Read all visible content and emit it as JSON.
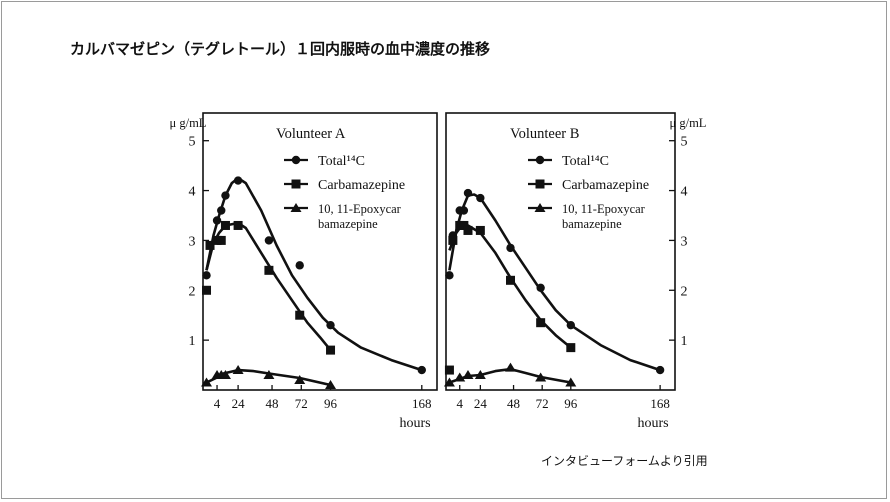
{
  "slide": {
    "title": "カルバマゼピン（テグレトール）１回内服時の血中濃度の推移",
    "source_note": "インタビューフォームより引用"
  },
  "colors": {
    "ink": "#111111",
    "border": "#9a9a9a",
    "background": "#ffffff"
  },
  "chart_data": [
    {
      "type": "line",
      "panel": "left",
      "title": "Volunteer A",
      "ylabel": "μ g/mL",
      "xlabel": "hours",
      "y_axis_side": "left",
      "ylim": [
        0,
        5
      ],
      "yticks": [
        "1",
        "2",
        "3",
        "4",
        "5"
      ],
      "xticks": [
        "4",
        "24",
        "48",
        "72",
        "96",
        "168"
      ],
      "legend_position": "top-right",
      "legend": [
        {
          "marker": "circle",
          "label": "Total¹⁴C"
        },
        {
          "marker": "square",
          "label": "Carbamazepine"
        },
        {
          "marker": "triangle",
          "label": "10, 11-Epoxycar",
          "label2": "bamazepine"
        }
      ],
      "series": [
        {
          "name": "Total¹⁴C",
          "marker": "circle",
          "points": [
            [
              1,
              2.3
            ],
            [
              2,
              2.9
            ],
            [
              4,
              3.4
            ],
            [
              8,
              3.6
            ],
            [
              12,
              3.9
            ],
            [
              24,
              4.2
            ],
            [
              48,
              3.0
            ],
            [
              72,
              2.5
            ],
            [
              96,
              1.3
            ],
            [
              168,
              0.4
            ]
          ],
          "curve": [
            [
              1,
              2.4
            ],
            [
              3,
              3.1
            ],
            [
              6,
              3.5
            ],
            [
              12,
              3.9
            ],
            [
              18,
              4.15
            ],
            [
              24,
              4.25
            ],
            [
              30,
              4.15
            ],
            [
              42,
              3.6
            ],
            [
              54,
              2.9
            ],
            [
              66,
              2.3
            ],
            [
              78,
              1.85
            ],
            [
              90,
              1.45
            ],
            [
              102,
              1.15
            ],
            [
              120,
              0.85
            ],
            [
              144,
              0.6
            ],
            [
              168,
              0.4
            ]
          ]
        },
        {
          "name": "Carbamazepine",
          "marker": "square",
          "points": [
            [
              1,
              2.0
            ],
            [
              2,
              2.9
            ],
            [
              4,
              3.0
            ],
            [
              8,
              3.0
            ],
            [
              12,
              3.3
            ],
            [
              24,
              3.3
            ],
            [
              48,
              2.4
            ],
            [
              72,
              1.5
            ],
            [
              96,
              0.8
            ]
          ],
          "curve": [
            [
              1,
              2.4
            ],
            [
              3,
              2.95
            ],
            [
              6,
              3.15
            ],
            [
              12,
              3.3
            ],
            [
              24,
              3.35
            ],
            [
              30,
              3.25
            ],
            [
              42,
              2.75
            ],
            [
              54,
              2.25
            ],
            [
              66,
              1.8
            ],
            [
              78,
              1.35
            ],
            [
              88,
              1.05
            ],
            [
              96,
              0.8
            ]
          ]
        },
        {
          "name": "10, 11-Epoxycarbamazepine",
          "marker": "triangle",
          "points": [
            [
              1,
              0.15
            ],
            [
              4,
              0.3
            ],
            [
              8,
              0.3
            ],
            [
              12,
              0.3
            ],
            [
              24,
              0.4
            ],
            [
              48,
              0.3
            ],
            [
              72,
              0.2
            ],
            [
              96,
              0.1
            ]
          ],
          "curve": [
            [
              1,
              0.15
            ],
            [
              4,
              0.25
            ],
            [
              10,
              0.33
            ],
            [
              24,
              0.4
            ],
            [
              36,
              0.38
            ],
            [
              48,
              0.33
            ],
            [
              72,
              0.24
            ],
            [
              96,
              0.1
            ]
          ]
        }
      ]
    },
    {
      "type": "line",
      "panel": "right",
      "title": "Volunteer B",
      "ylabel": "μ g/mL",
      "xlabel": "hours",
      "y_axis_side": "right",
      "ylim": [
        0,
        5
      ],
      "yticks": [
        "1",
        "2",
        "3",
        "4",
        "5"
      ],
      "xticks": [
        "4",
        "24",
        "48",
        "72",
        "96",
        "168"
      ],
      "legend_position": "top-right",
      "legend": [
        {
          "marker": "circle",
          "label": "Total¹⁴C"
        },
        {
          "marker": "square",
          "label": "Carbamazepine"
        },
        {
          "marker": "triangle",
          "label": "10, 11-Epoxycar",
          "label2": "bamazepine"
        }
      ],
      "series": [
        {
          "name": "Total¹⁴C",
          "marker": "circle",
          "points": [
            [
              1,
              2.3
            ],
            [
              2,
              3.1
            ],
            [
              4,
              3.6
            ],
            [
              8,
              3.6
            ],
            [
              12,
              3.95
            ],
            [
              24,
              3.85
            ],
            [
              48,
              2.85
            ],
            [
              72,
              2.05
            ],
            [
              96,
              1.3
            ],
            [
              168,
              0.4
            ]
          ],
          "curve": [
            [
              1,
              2.4
            ],
            [
              3,
              3.2
            ],
            [
              6,
              3.6
            ],
            [
              12,
              3.9
            ],
            [
              18,
              3.92
            ],
            [
              24,
              3.85
            ],
            [
              36,
              3.4
            ],
            [
              48,
              2.9
            ],
            [
              60,
              2.45
            ],
            [
              72,
              2.0
            ],
            [
              84,
              1.6
            ],
            [
              96,
              1.3
            ],
            [
              120,
              0.9
            ],
            [
              144,
              0.6
            ],
            [
              168,
              0.4
            ]
          ]
        },
        {
          "name": "Carbamazepine",
          "marker": "square",
          "points": [
            [
              1,
              0.4
            ],
            [
              2,
              3.0
            ],
            [
              4,
              3.3
            ],
            [
              8,
              3.3
            ],
            [
              12,
              3.2
            ],
            [
              24,
              3.2
            ],
            [
              48,
              2.2
            ],
            [
              72,
              1.35
            ],
            [
              96,
              0.85
            ]
          ],
          "curve": [
            [
              1,
              2.8
            ],
            [
              3,
              3.15
            ],
            [
              6,
              3.3
            ],
            [
              12,
              3.3
            ],
            [
              24,
              3.15
            ],
            [
              36,
              2.75
            ],
            [
              48,
              2.25
            ],
            [
              60,
              1.8
            ],
            [
              72,
              1.4
            ],
            [
              84,
              1.1
            ],
            [
              96,
              0.85
            ]
          ]
        },
        {
          "name": "10, 11-Epoxycarbamazepine",
          "marker": "triangle",
          "points": [
            [
              1,
              0.15
            ],
            [
              4,
              0.25
            ],
            [
              12,
              0.3
            ],
            [
              24,
              0.3
            ],
            [
              48,
              0.45
            ],
            [
              72,
              0.25
            ],
            [
              96,
              0.15
            ]
          ],
          "curve": [
            [
              1,
              0.15
            ],
            [
              4,
              0.22
            ],
            [
              12,
              0.28
            ],
            [
              24,
              0.3
            ],
            [
              36,
              0.38
            ],
            [
              48,
              0.42
            ],
            [
              60,
              0.34
            ],
            [
              72,
              0.26
            ],
            [
              96,
              0.15
            ]
          ]
        }
      ]
    }
  ]
}
